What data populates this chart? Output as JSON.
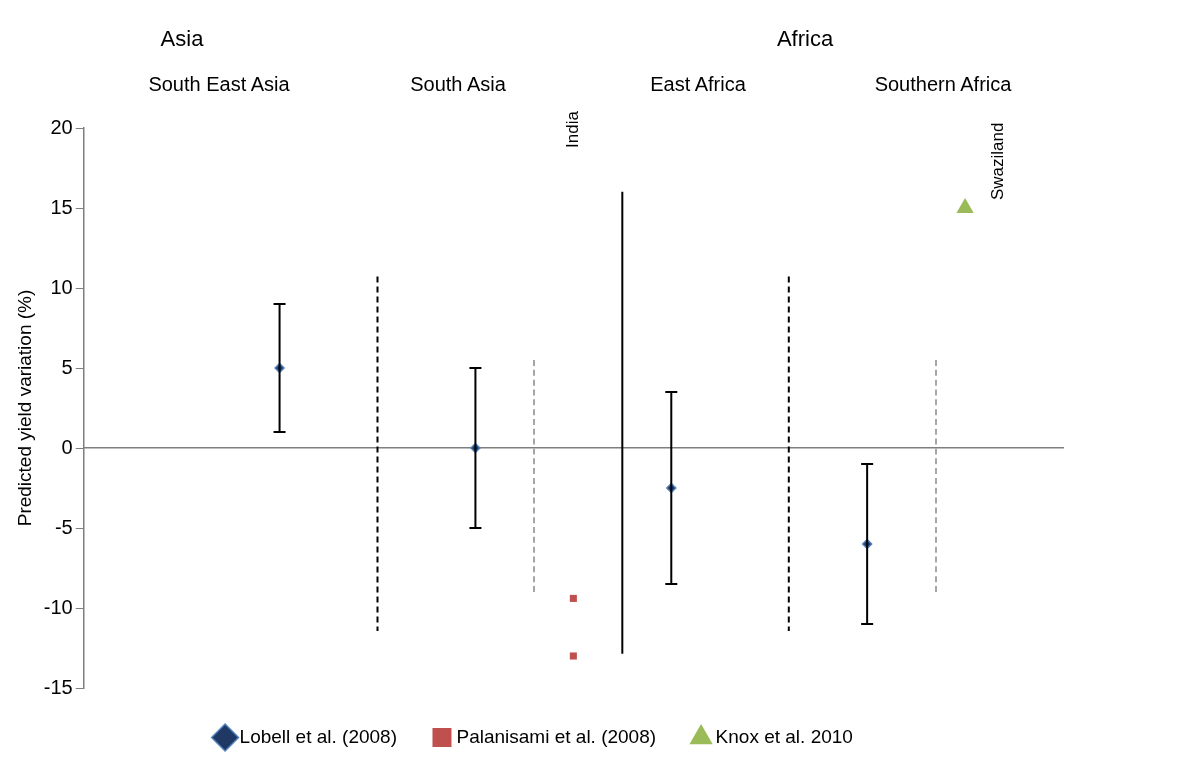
{
  "chart_data": {
    "type": "scatter",
    "ylabel": "Predicted yield variation (%)",
    "categories": [
      null,
      null,
      null,
      null,
      null,
      null,
      null,
      null,
      null,
      null,
      null
    ],
    "ylim": [
      -15,
      20
    ],
    "yticks": [
      -15,
      -10,
      -5,
      0,
      5,
      10,
      15,
      20
    ],
    "tick_labels": "y",
    "legend": "bottom",
    "series": [
      {
        "name": "Lobell et al. (2008)",
        "color": "#1f3864",
        "marker": "diamond",
        "values": [
          null,
          null,
          5,
          null,
          0,
          null,
          -2.5,
          null,
          -6,
          null,
          null
        ],
        "errors": [
          null,
          null,
          4,
          null,
          5,
          null,
          6,
          null,
          5,
          null,
          null
        ]
      },
      {
        "name": "Palanisami et al. (2008)",
        "color": "#c0504d",
        "marker": "square",
        "values": [
          null,
          null,
          null,
          null,
          null,
          -9.4,
          null,
          null,
          null,
          null,
          null
        ]
      },
      {
        "color": "#c0504d",
        "marker": "square",
        "values": [
          null,
          null,
          null,
          null,
          null,
          -13,
          null,
          null,
          null,
          null,
          null
        ]
      },
      {
        "name": "Knox et al. 2010",
        "color": "#9bbb59",
        "marker": "triangle",
        "values": [
          null,
          null,
          null,
          null,
          null,
          null,
          null,
          null,
          null,
          15,
          null
        ]
      }
    ],
    "annotations": [
      "Asia",
      "Africa",
      "South East Asia",
      "South Asia",
      "East Africa",
      "Southern Africa",
      "India",
      "Swaziland"
    ]
  }
}
